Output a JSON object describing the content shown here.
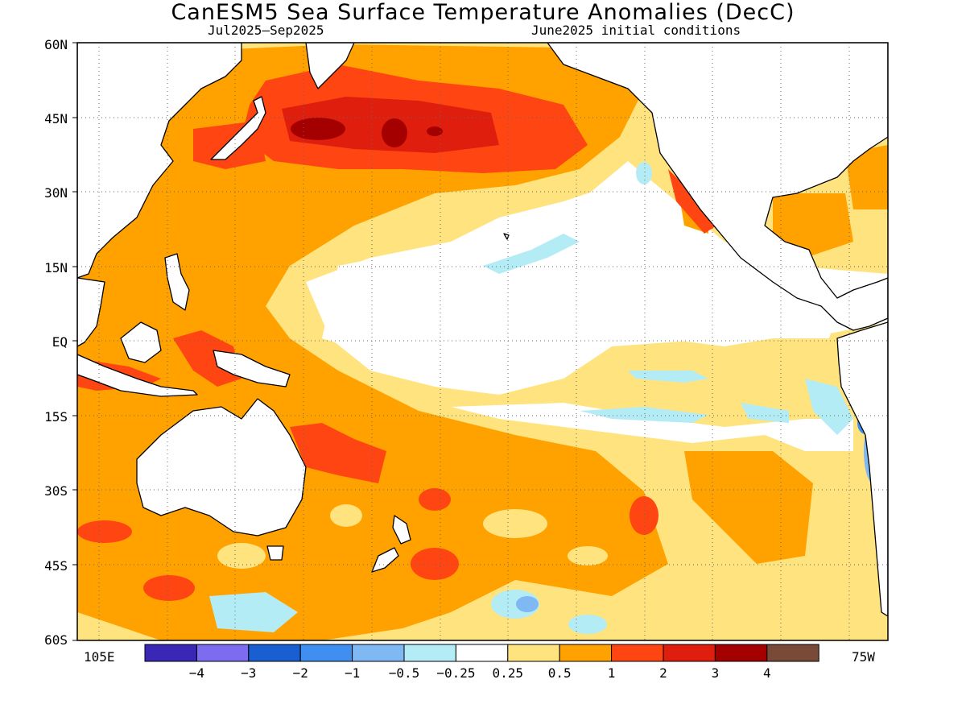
{
  "title": "CanESM5 Sea Surface Temperature Anomalies (DecC)",
  "subtitle_left": "Jul2025—Sep2025",
  "subtitle_right": "June2025 initial conditions",
  "lat_labels": [
    "60N",
    "45N",
    "30N",
    "15N",
    "EQ",
    "15S",
    "30S",
    "45S",
    "60S"
  ],
  "lon_labels": {
    "left": "105E",
    "right": "75W"
  },
  "colorbar": {
    "colors": [
      "#3b27b6",
      "#7e6cf0",
      "#1a5fd1",
      "#3f8ff0",
      "#80b8f4",
      "#b4ecf6",
      "#ffffff",
      "#ffe37e",
      "#ffa200",
      "#ff4612",
      "#e01e0e",
      "#a50000",
      "#7a4a38"
    ],
    "labels": [
      "−4",
      "−3",
      "−2",
      "−1",
      "−0.5",
      "−0.25",
      "0.25",
      "0.5",
      "1",
      "2",
      "3",
      "4"
    ]
  }
}
